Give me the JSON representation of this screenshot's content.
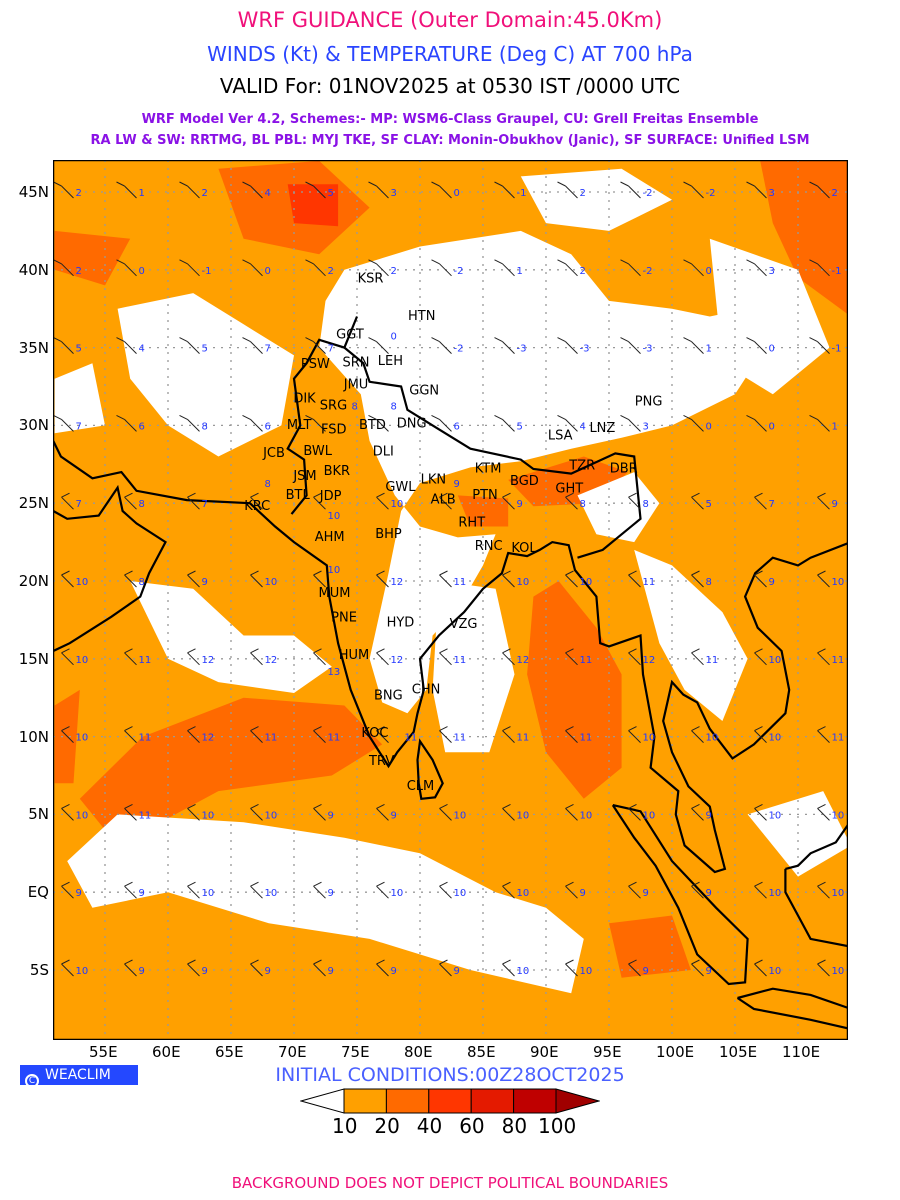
{
  "header": {
    "title": "WRF GUIDANCE (Outer Domain:45.0Km)",
    "subtitle": "WINDS (Kt) & TEMPERATURE (Deg C) AT 700 hPa",
    "valid": "VALID For: 01NOV2025 at 0530 IST /0000 UTC",
    "model_line1": "WRF Model Ver 4.2, Schemes:- MP: WSM6-Class Graupel, CU: Grell Freitas Ensemble",
    "model_line2": "RA LW & SW: RRTMG, BL PBL: MYJ TKE, SF CLAY: Monin-Obukhov (Janic), SF SURFACE: Unified LSM"
  },
  "axes": {
    "lat_labels": [
      {
        "lat": 45,
        "text": "45N"
      },
      {
        "lat": 40,
        "text": "40N"
      },
      {
        "lat": 35,
        "text": "35N"
      },
      {
        "lat": 30,
        "text": "30N"
      },
      {
        "lat": 25,
        "text": "25N"
      },
      {
        "lat": 20,
        "text": "20N"
      },
      {
        "lat": 15,
        "text": "15N"
      },
      {
        "lat": 10,
        "text": "10N"
      },
      {
        "lat": 5,
        "text": "5N"
      },
      {
        "lat": 0,
        "text": "EQ"
      },
      {
        "lat": -5,
        "text": "5S"
      }
    ],
    "lon_labels": [
      {
        "lon": 55,
        "text": "55E"
      },
      {
        "lon": 60,
        "text": "60E"
      },
      {
        "lon": 65,
        "text": "65E"
      },
      {
        "lon": 70,
        "text": "70E"
      },
      {
        "lon": 75,
        "text": "75E"
      },
      {
        "lon": 80,
        "text": "80E"
      },
      {
        "lon": 85,
        "text": "85E"
      },
      {
        "lon": 90,
        "text": "90E"
      },
      {
        "lon": 95,
        "text": "95E"
      },
      {
        "lon": 100,
        "text": "100E"
      },
      {
        "lon": 105,
        "text": "105E"
      },
      {
        "lon": 110,
        "text": "110E"
      }
    ]
  },
  "temperature_grid": {
    "lats": [
      45,
      40,
      35,
      30,
      25,
      20,
      15,
      10,
      5,
      0,
      -5
    ],
    "lons": [
      52.5,
      57.5,
      62.5,
      67.5,
      72.5,
      77.5,
      82.5,
      87.5,
      92.5,
      97.5,
      102.5,
      107.5,
      112.5
    ],
    "values": [
      [
        2,
        1,
        2,
        4,
        5,
        3,
        0,
        -1,
        2,
        -2,
        -2,
        3,
        2
      ],
      [
        2,
        0,
        -1,
        0,
        2,
        2,
        -2,
        1,
        2,
        -2,
        0,
        3,
        -1
      ],
      [
        5,
        4,
        5,
        7,
        7,
        0,
        -2,
        -3,
        -3,
        -3,
        1,
        0,
        -1
      ],
      [
        7,
        6,
        8,
        6,
        8,
        8,
        6,
        5,
        4,
        3,
        0,
        0,
        1
      ],
      [
        7,
        8,
        7,
        8,
        10,
        10,
        9,
        9,
        8,
        8,
        5,
        7,
        9
      ],
      [
        10,
        8,
        9,
        10,
        10,
        12,
        11,
        10,
        10,
        11,
        8,
        9,
        10
      ],
      [
        10,
        11,
        12,
        12,
        13,
        12,
        11,
        12,
        11,
        12,
        11,
        10,
        11
      ],
      [
        10,
        11,
        12,
        11,
        11,
        11,
        11,
        11,
        11,
        10,
        10,
        10,
        11
      ],
      [
        10,
        11,
        10,
        10,
        9,
        9,
        10,
        10,
        10,
        10,
        9,
        10,
        10
      ],
      [
        9,
        9,
        10,
        10,
        9,
        10,
        10,
        10,
        9,
        9,
        9,
        10,
        10
      ],
      [
        10,
        9,
        9,
        9,
        9,
        9,
        9,
        10,
        10,
        9,
        9,
        10,
        10
      ]
    ]
  },
  "cities": [
    {
      "code": "KSR",
      "lon": 76,
      "lat": 39.5
    },
    {
      "code": "HTN",
      "lon": 80,
      "lat": 37.1
    },
    {
      "code": "GGT",
      "lon": 74.3,
      "lat": 35.9
    },
    {
      "code": "PSW",
      "lon": 71.5,
      "lat": 34
    },
    {
      "code": "SRN",
      "lon": 74.8,
      "lat": 34.1
    },
    {
      "code": "LEH",
      "lon": 77.6,
      "lat": 34.2
    },
    {
      "code": "JMU",
      "lon": 74.9,
      "lat": 32.7
    },
    {
      "code": "DIK",
      "lon": 70.9,
      "lat": 31.8
    },
    {
      "code": "SRG",
      "lon": 73,
      "lat": 32.1
    },
    {
      "code": "FSD",
      "lon": 73.1,
      "lat": 31.1
    },
    {
      "code": "GGN",
      "lon": 80.1,
      "lat": 32.3
    },
    {
      "code": "MLT",
      "lon": 71.5,
      "lat": 30.1
    },
    {
      "code": "BTD",
      "lon": 75,
      "lat": 30.1
    },
    {
      "code": "DNG",
      "lon": 78,
      "lat": 30.2
    },
    {
      "code": "BWL",
      "lon": 71.7,
      "lat": 29.2
    },
    {
      "code": "DLI",
      "lon": 77.2,
      "lat": 28.4
    },
    {
      "code": "JCB",
      "lon": 68.5,
      "lat": 28.3
    },
    {
      "code": "BKR",
      "lon": 73.3,
      "lat": 27.9
    },
    {
      "code": "KTM",
      "lon": 85.3,
      "lat": 27.3
    },
    {
      "code": "LSA",
      "lon": 91.1,
      "lat": 29.4
    },
    {
      "code": "LNZ",
      "lon": 94.4,
      "lat": 29.9
    },
    {
      "code": "PNG",
      "lon": 98,
      "lat": 31.6
    },
    {
      "code": "JSM",
      "lon": 70.9,
      "lat": 26.8
    },
    {
      "code": "JDP",
      "lon": 73,
      "lat": 26.3
    },
    {
      "code": "BTL",
      "lon": 71.4,
      "lat": 25.6
    },
    {
      "code": "GWL",
      "lon": 78.2,
      "lat": 26.1
    },
    {
      "code": "LKN",
      "lon": 81,
      "lat": 26.6
    },
    {
      "code": "ALB",
      "lon": 81.8,
      "lat": 25.3
    },
    {
      "code": "PTN",
      "lon": 85.1,
      "lat": 25.6
    },
    {
      "code": "RHT",
      "lon": 84,
      "lat": 24.6
    },
    {
      "code": "BGD",
      "lon": 88.1,
      "lat": 26.5
    },
    {
      "code": "GHT",
      "lon": 91.7,
      "lat": 26
    },
    {
      "code": "TZR",
      "lon": 92.8,
      "lat": 26.7
    },
    {
      "code": "DBR",
      "lon": 94.9,
      "lat": 27.3
    },
    {
      "code": "KRC",
      "lon": 67,
      "lat": 24.9
    },
    {
      "code": "BHP",
      "lon": 77.4,
      "lat": 23.1
    },
    {
      "code": "RNC",
      "lon": 85.3,
      "lat": 23.1
    },
    {
      "code": "KOL",
      "lon": 88.2,
      "lat": 22.2
    },
    {
      "code": "AHM",
      "lon": 72.6,
      "lat": 22.9
    },
    {
      "code": "MUM",
      "lon": 72.9,
      "lat": 19.3
    },
    {
      "code": "PNE",
      "lon": 73.9,
      "lat": 18.5
    },
    {
      "code": "HYD",
      "lon": 78.3,
      "lat": 17.4
    },
    {
      "code": "VZG",
      "lon": 83.3,
      "lat": 17.3
    },
    {
      "code": "HUM",
      "lon": 74.5,
      "lat": 15.3
    },
    {
      "code": "BNG",
      "lon": 77.3,
      "lat": 12.7
    },
    {
      "code": "CHN",
      "lon": 80.3,
      "lat": 13.1
    },
    {
      "code": "KOC",
      "lon": 76.3,
      "lat": 10.3
    },
    {
      "code": "TRV",
      "lon": 76.9,
      "lat": 8.5
    },
    {
      "code": "CLM",
      "lon": 79.9,
      "lat": 6.9
    }
  ],
  "legend": {
    "levels": [
      "10",
      "20",
      "40",
      "60",
      "80",
      "100"
    ],
    "colors": [
      "#ffffff",
      "#ffa000",
      "#ff6a00",
      "#ff3600",
      "#e41a00",
      "#bf0000",
      "#a00000"
    ]
  },
  "badge": {
    "icon": "copyright-icon",
    "text": "WEACLIM"
  },
  "initial_conditions": "INITIAL CONDITIONS:00Z28OCT2025",
  "footer": "BACKGROUND DOES NOT DEPICT POLITICAL BOUNDARIES"
}
